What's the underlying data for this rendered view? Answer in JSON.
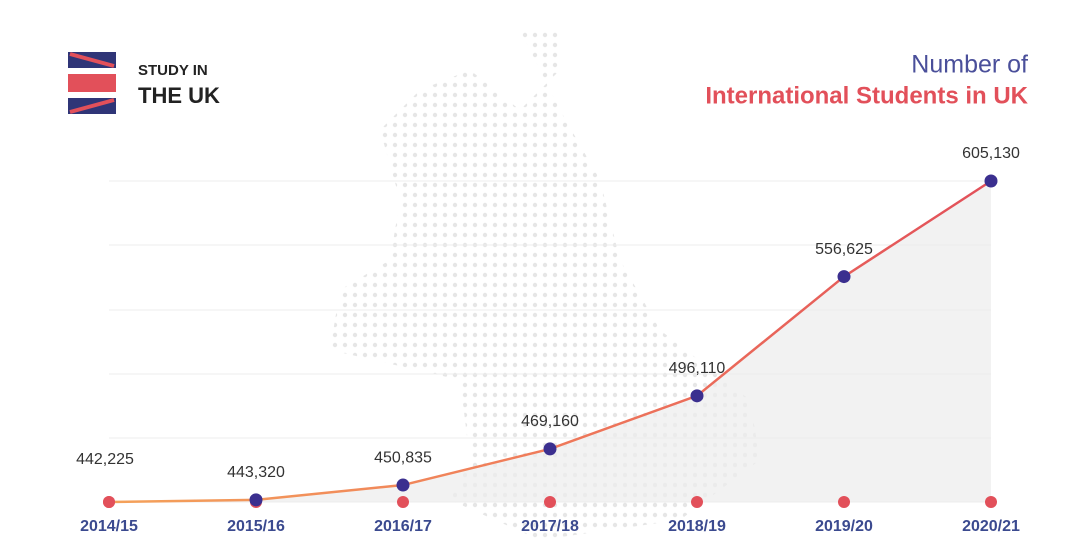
{
  "brand": {
    "line1": "STUDY IN",
    "line2": "THE UK"
  },
  "chart_data": {
    "type": "line",
    "title": "Number of",
    "subtitle": "International Students in UK",
    "categories": [
      "2014/15",
      "2015/16",
      "2016/17",
      "2017/18",
      "2018/19",
      "2019/20",
      "2020/21"
    ],
    "values": [
      442225,
      443320,
      450835,
      469160,
      496110,
      556625,
      605130
    ],
    "value_labels": [
      "442,225",
      "443,320",
      "450,835",
      "469,160",
      "496,110",
      "556,625",
      "605,130"
    ],
    "color": "#e2505a",
    "marker_color": "#3b2f8f"
  }
}
